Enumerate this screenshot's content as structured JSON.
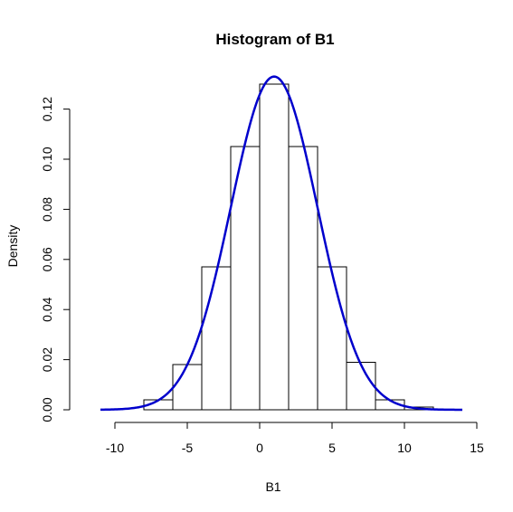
{
  "chart_data": {
    "type": "bar",
    "title": "Histogram of B1",
    "xlabel": "B1",
    "ylabel": "Density",
    "xlim": [
      -12,
      14
    ],
    "ylim": [
      0,
      0.133
    ],
    "x_ticks": [
      -10,
      -5,
      0,
      5,
      10,
      15
    ],
    "x_tick_labels": [
      "-10",
      "-5",
      "0",
      "5",
      "10",
      "15"
    ],
    "y_ticks": [
      0,
      0.02,
      0.04,
      0.06,
      0.08,
      0.1,
      0.12
    ],
    "y_tick_labels": [
      "0.00",
      "0.02",
      "0.04",
      "0.06",
      "0.08",
      "0.10",
      "0.12"
    ],
    "grid": false,
    "series": [
      {
        "type": "histogram",
        "bins": [
          {
            "from": -12,
            "to": -10,
            "density": 0.0
          },
          {
            "from": -10,
            "to": -8,
            "density": 0.0
          },
          {
            "from": -8,
            "to": -6,
            "density": 0.004
          },
          {
            "from": -6,
            "to": -4,
            "density": 0.018
          },
          {
            "from": -4,
            "to": -2,
            "density": 0.057
          },
          {
            "from": -2,
            "to": 0,
            "density": 0.105
          },
          {
            "from": 0,
            "to": 2,
            "density": 0.13
          },
          {
            "from": 2,
            "to": 4,
            "density": 0.105
          },
          {
            "from": 4,
            "to": 6,
            "density": 0.057
          },
          {
            "from": 6,
            "to": 8,
            "density": 0.019
          },
          {
            "from": 8,
            "to": 10,
            "density": 0.004
          },
          {
            "from": 10,
            "to": 12,
            "density": 0.001
          },
          {
            "from": 12,
            "to": 14,
            "density": 0.0
          }
        ],
        "color": "#000000"
      },
      {
        "type": "line",
        "shape": "normal-density",
        "mean": 1,
        "sd": 3,
        "x_range": [
          -11,
          14
        ],
        "color": "#0000cc"
      }
    ]
  }
}
